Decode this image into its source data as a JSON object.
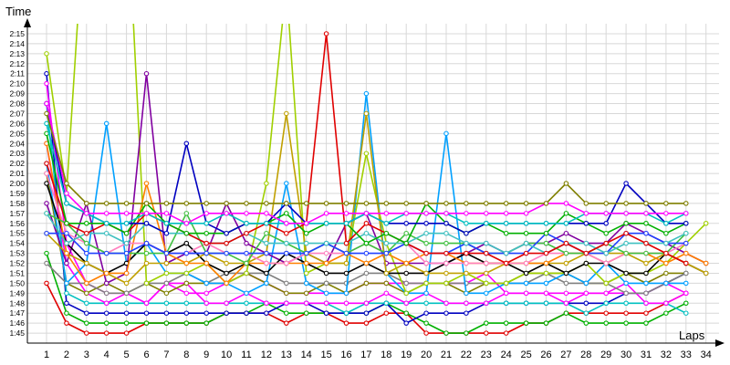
{
  "chart_data": {
    "type": "line",
    "ylabel": "Time",
    "xlabel": "Laps",
    "x": [
      1,
      2,
      3,
      4,
      5,
      6,
      7,
      8,
      9,
      10,
      11,
      12,
      13,
      14,
      15,
      16,
      17,
      18,
      19,
      20,
      21,
      22,
      23,
      24,
      25,
      26,
      27,
      28,
      29,
      30,
      31,
      32,
      33,
      34
    ],
    "y_ticks": [
      "1:45",
      "1:46",
      "1:47",
      "1:48",
      "1:49",
      "1:50",
      "1:51",
      "1:52",
      "1:53",
      "1:54",
      "1:55",
      "1:56",
      "1:57",
      "1:58",
      "1:59",
      "2:00",
      "2:01",
      "2:02",
      "2:03",
      "2:04",
      "2:05",
      "2:06",
      "2:07",
      "2:08",
      "2:09",
      "2:10",
      "2:11",
      "2:12",
      "2:13",
      "2:14",
      "2:15"
    ],
    "ylim_seconds": [
      104,
      136
    ],
    "grid": true,
    "legend": "none",
    "series": [
      {
        "color": "#e00000",
        "values": [
          110,
          106,
          105,
          105,
          105,
          106,
          106,
          106,
          106,
          107,
          107,
          107,
          106,
          107,
          107,
          106,
          106,
          107,
          107,
          105,
          105,
          105,
          105,
          105,
          106,
          106,
          107,
          107,
          107,
          107,
          107,
          108,
          109,
          null
        ]
      },
      {
        "color": "#00b000",
        "values": [
          113,
          107,
          106,
          106,
          106,
          106,
          106,
          106,
          106,
          107,
          107,
          108,
          107,
          107,
          107,
          107,
          107,
          108,
          107,
          106,
          105,
          105,
          106,
          106,
          106,
          106,
          107,
          106,
          106,
          106,
          106,
          107,
          108,
          null
        ]
      },
      {
        "color": "#0000c0",
        "values": [
          131,
          108,
          107,
          107,
          107,
          107,
          107,
          107,
          107,
          107,
          107,
          107,
          108,
          108,
          107,
          107,
          107,
          108,
          106,
          107,
          107,
          107,
          108,
          108,
          108,
          108,
          108,
          108,
          108,
          109,
          109,
          110,
          111,
          null
        ]
      },
      {
        "color": "#00c0c0",
        "values": [
          128,
          109,
          108,
          108,
          108,
          108,
          108,
          108,
          108,
          108,
          108,
          108,
          108,
          108,
          108,
          107,
          108,
          108,
          108,
          108,
          108,
          108,
          108,
          108,
          108,
          108,
          108,
          107,
          108,
          108,
          108,
          108,
          107,
          null
        ]
      },
      {
        "color": "#ff00ff",
        "values": [
          124,
          112,
          109,
          108,
          109,
          108,
          110,
          109,
          109,
          110,
          111,
          110,
          109,
          109,
          109,
          109,
          110,
          110,
          110,
          110,
          110,
          110,
          111,
          109,
          109,
          109,
          109,
          109,
          109,
          110,
          108,
          108,
          109,
          null
        ]
      },
      {
        "color": "#ff00ff",
        "values": [
          130,
          114,
          110,
          109,
          109,
          108,
          110,
          110,
          108,
          108,
          109,
          108,
          108,
          108,
          108,
          108,
          108,
          109,
          108,
          109,
          108,
          108,
          108,
          109,
          109,
          109,
          108,
          109,
          109,
          109,
          109,
          110,
          109,
          null
        ]
      },
      {
        "color": "#808000",
        "values": [
          121,
          110,
          109,
          110,
          109,
          110,
          109,
          110,
          110,
          110,
          111,
          110,
          109,
          109,
          110,
          109,
          110,
          110,
          109,
          110,
          110,
          109,
          110,
          110,
          111,
          111,
          111,
          110,
          110,
          111,
          110,
          111,
          111,
          null
        ]
      },
      {
        "color": "#808080",
        "values": [
          112,
          110,
          110,
          109,
          109,
          110,
          110,
          111,
          110,
          111,
          111,
          111,
          110,
          110,
          110,
          110,
          111,
          111,
          110,
          110,
          110,
          110,
          110,
          110,
          110,
          111,
          110,
          110,
          110,
          109,
          109,
          110,
          111,
          null
        ]
      },
      {
        "color": "#00a0ff",
        "values": [
          122,
          110,
          112,
          126,
          112,
          114,
          111,
          111,
          110,
          110,
          109,
          110,
          120,
          110,
          109,
          109,
          129,
          111,
          109,
          109,
          125,
          109,
          109,
          110,
          110,
          110,
          111,
          110,
          112,
          110,
          110,
          110,
          110,
          null
        ]
      },
      {
        "color": "#a0d000",
        "values": [
          133,
          119,
          150,
          150,
          150,
          110,
          111,
          111,
          112,
          110,
          111,
          120,
          140,
          111,
          112,
          112,
          123,
          114,
          109,
          110,
          110,
          111,
          110,
          110,
          111,
          111,
          111,
          112,
          110,
          111,
          111,
          112,
          114,
          116
        ]
      },
      {
        "color": "#8000a0",
        "values": [
          118,
          112,
          118,
          110,
          111,
          131,
          112,
          113,
          113,
          118,
          114,
          113,
          112,
          113,
          112,
          116,
          117,
          112,
          112,
          112,
          112,
          113,
          114,
          113,
          114,
          114,
          115,
          114,
          114,
          116,
          115,
          114,
          113,
          112
        ]
      },
      {
        "color": "#000000",
        "values": [
          120,
          114,
          112,
          111,
          112,
          114,
          113,
          114,
          112,
          111,
          112,
          111,
          113,
          112,
          111,
          111,
          112,
          111,
          111,
          111,
          112,
          113,
          112,
          112,
          111,
          112,
          111,
          112,
          112,
          111,
          111,
          113,
          112,
          111
        ]
      },
      {
        "color": "#c0a000",
        "values": [
          115,
          113,
          112,
          111,
          110,
          112,
          112,
          112,
          113,
          112,
          112,
          113,
          127,
          113,
          112,
          112,
          127,
          111,
          112,
          111,
          111,
          111,
          111,
          112,
          112,
          112,
          112,
          113,
          113,
          113,
          112,
          113,
          112,
          111
        ]
      },
      {
        "color": "#ff8000",
        "values": [
          124,
          113,
          110,
          111,
          111,
          120,
          113,
          112,
          112,
          110,
          112,
          112,
          112,
          112,
          112,
          113,
          112,
          113,
          112,
          113,
          113,
          112,
          112,
          112,
          112,
          112,
          113,
          113,
          112,
          113,
          113,
          112,
          113,
          112
        ]
      },
      {
        "color": "#ff80c0",
        "values": [
          121,
          115,
          114,
          113,
          114,
          114,
          113,
          113,
          114,
          113,
          113,
          112,
          112,
          113,
          113,
          113,
          114,
          113,
          114,
          112,
          112,
          112,
          112,
          112,
          112,
          113,
          113,
          113,
          112,
          113,
          113,
          113,
          114,
          null
        ]
      },
      {
        "color": "#40c040",
        "values": [
          117,
          116,
          114,
          113,
          113,
          113,
          113,
          117,
          113,
          113,
          112,
          115,
          114,
          113,
          114,
          113,
          114,
          113,
          115,
          114,
          114,
          114,
          113,
          113,
          114,
          114,
          113,
          113,
          114,
          113,
          113,
          113,
          115,
          null
        ]
      },
      {
        "color": "#2040ff",
        "values": [
          115,
          115,
          113,
          113,
          113,
          114,
          113,
          113,
          113,
          113,
          113,
          113,
          113,
          113,
          114,
          113,
          113,
          113,
          114,
          113,
          113,
          114,
          113,
          113,
          113,
          115,
          114,
          113,
          113,
          115,
          115,
          114,
          114,
          null
        ]
      },
      {
        "color": "#40c0c0",
        "values": [
          117,
          114,
          115,
          115,
          114,
          116,
          115,
          115,
          114,
          114,
          115,
          114,
          114,
          114,
          114,
          114,
          115,
          114,
          114,
          115,
          115,
          114,
          114,
          113,
          114,
          113,
          114,
          114,
          113,
          114,
          114,
          114,
          115,
          null
        ]
      },
      {
        "color": "#e00000",
        "values": [
          122,
          116,
          115,
          116,
          115,
          117,
          116,
          115,
          114,
          114,
          115,
          116,
          115,
          116,
          135,
          114,
          116,
          115,
          114,
          113,
          113,
          113,
          113,
          112,
          113,
          113,
          114,
          113,
          114,
          115,
          114,
          113,
          112,
          null
        ]
      },
      {
        "color": "#00b000",
        "values": [
          125,
          116,
          116,
          116,
          115,
          118,
          116,
          115,
          115,
          115,
          116,
          116,
          117,
          115,
          116,
          116,
          114,
          115,
          114,
          118,
          116,
          115,
          116,
          115,
          115,
          115,
          117,
          116,
          115,
          116,
          116,
          115,
          116,
          null
        ]
      },
      {
        "color": "#0000c0",
        "values": [
          128,
          118,
          117,
          116,
          116,
          116,
          115,
          124,
          116,
          115,
          116,
          116,
          118,
          116,
          116,
          116,
          117,
          116,
          116,
          116,
          116,
          115,
          116,
          116,
          116,
          116,
          116,
          116,
          116,
          120,
          118,
          116,
          116,
          null
        ]
      },
      {
        "color": "#00c0c0",
        "values": [
          126,
          118,
          117,
          116,
          116,
          117,
          116,
          116,
          116,
          117,
          116,
          116,
          116,
          116,
          116,
          116,
          117,
          116,
          117,
          117,
          117,
          116,
          116,
          116,
          116,
          116,
          116,
          117,
          117,
          117,
          117,
          116,
          117,
          null
        ]
      },
      {
        "color": "#ff00ff",
        "values": [
          128,
          119,
          117,
          117,
          117,
          117,
          117,
          116,
          117,
          117,
          117,
          117,
          116,
          116,
          117,
          117,
          117,
          117,
          117,
          117,
          117,
          117,
          117,
          117,
          117,
          118,
          118,
          117,
          117,
          117,
          117,
          117,
          117,
          null
        ]
      },
      {
        "color": "#808000",
        "values": [
          127,
          120,
          118,
          118,
          118,
          118,
          118,
          118,
          118,
          118,
          118,
          118,
          118,
          118,
          118,
          118,
          118,
          118,
          118,
          118,
          118,
          118,
          118,
          118,
          118,
          118,
          120,
          118,
          118,
          118,
          118,
          118,
          118,
          null
        ]
      }
    ]
  }
}
